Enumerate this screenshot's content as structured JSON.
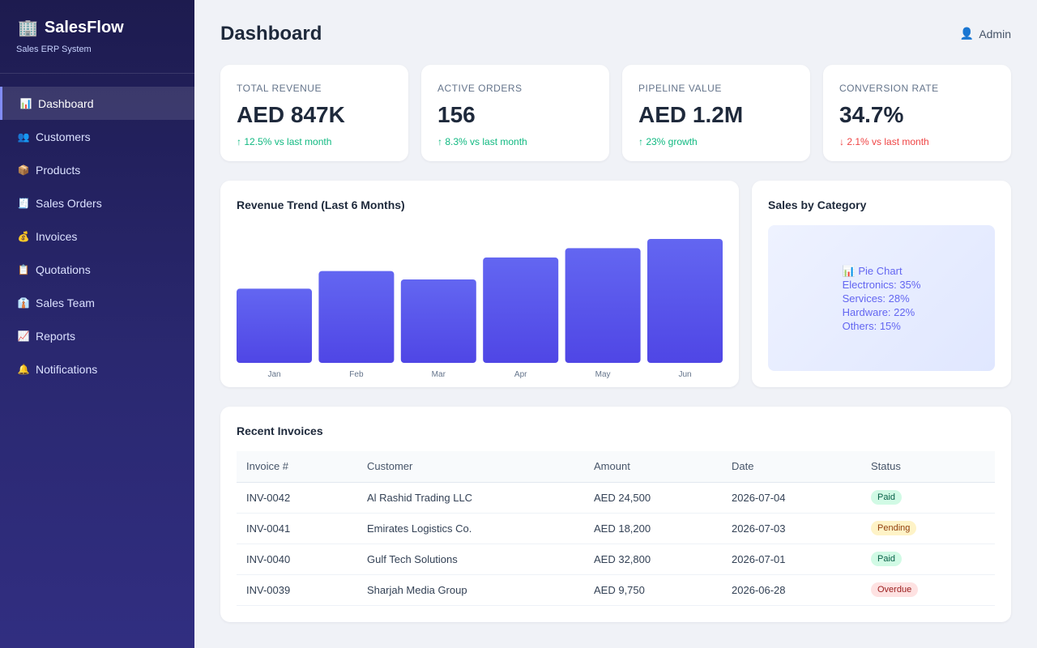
{
  "brand": {
    "title": "SalesFlow",
    "subtitle": "Sales ERP System",
    "icon": "building-icon"
  },
  "sidebar": {
    "items": [
      {
        "label": "Dashboard",
        "icon": "chart-icon",
        "glyph": "📊",
        "active": true
      },
      {
        "label": "Customers",
        "icon": "people-icon",
        "glyph": "👥"
      },
      {
        "label": "Products",
        "icon": "package-icon",
        "glyph": "📦"
      },
      {
        "label": "Sales Orders",
        "icon": "register-icon",
        "glyph": "🧾"
      },
      {
        "label": "Invoices",
        "icon": "money-bag-icon",
        "glyph": "💰"
      },
      {
        "label": "Quotations",
        "icon": "clipboard-icon",
        "glyph": "📋"
      },
      {
        "label": "Sales Team",
        "icon": "team-icon",
        "glyph": "👔"
      },
      {
        "label": "Reports",
        "icon": "trend-icon",
        "glyph": "📈"
      },
      {
        "label": "Notifications",
        "icon": "bell-icon",
        "glyph": "🔔"
      }
    ]
  },
  "header": {
    "title": "Dashboard",
    "user": "Admin",
    "user_icon": "user-icon"
  },
  "kpis": [
    {
      "label": "Total Revenue",
      "value": "AED 847K",
      "delta": "↑ 12.5% vs last month",
      "trend": "up"
    },
    {
      "label": "Active Orders",
      "value": "156",
      "delta": "↑ 8.3% vs last month",
      "trend": "up"
    },
    {
      "label": "Pipeline Value",
      "value": "AED 1.2M",
      "delta": "↑ 23% growth",
      "trend": "up"
    },
    {
      "label": "Conversion Rate",
      "value": "34.7%",
      "delta": "↓ 2.1% vs last month",
      "trend": "down"
    }
  ],
  "revenue": {
    "title": "Revenue Trend (Last 6 Months)"
  },
  "chart_data": {
    "type": "bar",
    "title": "Revenue Trend (Last 6 Months)",
    "categories": [
      "Jan",
      "Feb",
      "Mar",
      "Apr",
      "May",
      "Jun"
    ],
    "values": [
      88,
      109,
      99,
      125,
      136,
      147
    ],
    "ylim": [
      0,
      147
    ],
    "grid": false,
    "color": "#5b5cec"
  },
  "category": {
    "title": "Sales by Category",
    "placeholder_icon": "chart-icon",
    "lines": [
      "📊 Pie Chart",
      "Electronics: 35%",
      "Services: 28%",
      "Hardware: 22%",
      "Others: 15%"
    ]
  },
  "invoices": {
    "title": "Recent Invoices",
    "columns": [
      "Invoice #",
      "Customer",
      "Amount",
      "Date",
      "Status"
    ],
    "rows": [
      {
        "id": "INV-0042",
        "customer": "Al Rashid Trading LLC",
        "amount": "AED 24,500",
        "date": "2026-07-04",
        "status": "Paid"
      },
      {
        "id": "INV-0041",
        "customer": "Emirates Logistics Co.",
        "amount": "AED 18,200",
        "date": "2026-07-03",
        "status": "Pending"
      },
      {
        "id": "INV-0040",
        "customer": "Gulf Tech Solutions",
        "amount": "AED 32,800",
        "date": "2026-07-01",
        "status": "Paid"
      },
      {
        "id": "INV-0039",
        "customer": "Sharjah Media Group",
        "amount": "AED 9,750",
        "date": "2026-06-28",
        "status": "Overdue"
      }
    ]
  },
  "colors": {
    "accent": "#6366f1",
    "up": "#10b981",
    "down": "#ef4444",
    "sidebar": "#1d1b4f"
  }
}
